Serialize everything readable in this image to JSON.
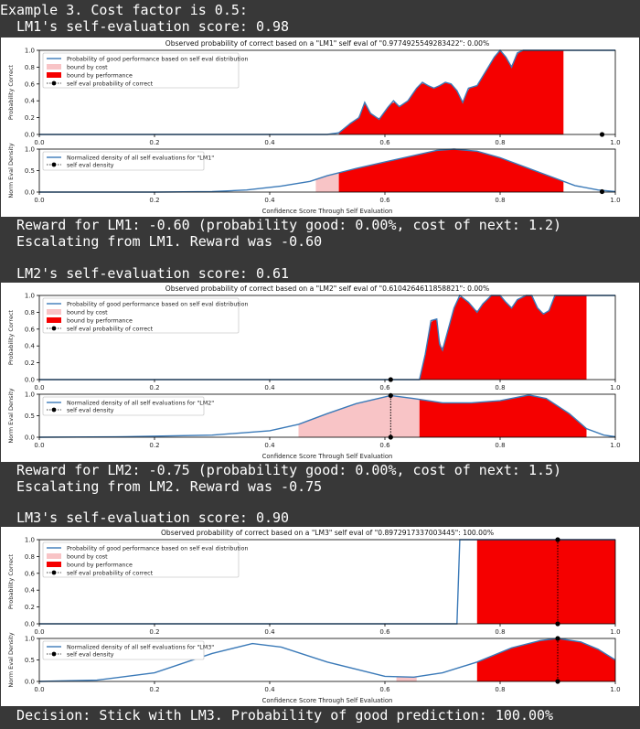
{
  "lines": {
    "l0": "Example 3. Cost factor is 0.5:",
    "l1": "  LM1's self-evaluation score: 0.98",
    "l2": "  Reward for LM1: -0.60 (probability good: 0.00%, cost of next: 1.2)",
    "l3": "  Escalating from LM1. Reward was -0.60",
    "l4": "  LM2's self-evaluation score: 0.61",
    "l5": "  Reward for LM2: -0.75 (probability good: 0.00%, cost of next: 1.5)",
    "l6": "  Escalating from LM2. Reward was -0.75",
    "l7": "  LM3's self-evaluation score: 0.90",
    "l8": "  Decision: Stick with LM3. Probability of good prediction: 100.00%"
  },
  "colors": {
    "line": "#3b7ab8",
    "cost": "#f8c4c6",
    "perf": "#f50000",
    "point": "#000000"
  },
  "chart_data": [
    {
      "type": "area",
      "model": "LM1",
      "self_eval": 0.98,
      "top": {
        "title": "Observed probability of correct based on a \"LM1\" self eval of \"0.9774925549283422\": 0.00%",
        "ylabel": "Probability Correct",
        "legend": [
          "Probability of good performance based on self eval distribution",
          "bound by cost",
          "bound by performance",
          "self eval probability of correct"
        ],
        "curve": [
          [
            0,
            0
          ],
          [
            0.5,
            0
          ],
          [
            0.52,
            0.02
          ],
          [
            0.54,
            0.13
          ],
          [
            0.555,
            0.2
          ],
          [
            0.565,
            0.38
          ],
          [
            0.575,
            0.25
          ],
          [
            0.59,
            0.18
          ],
          [
            0.605,
            0.32
          ],
          [
            0.615,
            0.4
          ],
          [
            0.625,
            0.33
          ],
          [
            0.64,
            0.4
          ],
          [
            0.655,
            0.55
          ],
          [
            0.665,
            0.62
          ],
          [
            0.675,
            0.58
          ],
          [
            0.685,
            0.55
          ],
          [
            0.695,
            0.58
          ],
          [
            0.705,
            0.62
          ],
          [
            0.715,
            0.6
          ],
          [
            0.725,
            0.52
          ],
          [
            0.735,
            0.38
          ],
          [
            0.745,
            0.55
          ],
          [
            0.76,
            0.58
          ],
          [
            0.775,
            0.75
          ],
          [
            0.79,
            0.92
          ],
          [
            0.8,
            1.0
          ],
          [
            0.81,
            0.92
          ],
          [
            0.82,
            0.8
          ],
          [
            0.83,
            0.97
          ],
          [
            0.84,
            1.0
          ],
          [
            1.0,
            1.0
          ]
        ],
        "perf_range": [
          0.52,
          0.91
        ],
        "cost_range": null,
        "point": [
          0.977,
          0.0
        ],
        "ylim": [
          0,
          1
        ],
        "yticks": [
          0,
          0.2,
          0.4,
          0.6,
          0.8,
          1.0
        ]
      },
      "bottom": {
        "legend": [
          "Normalized density of all self evaluations for \"LM1\"",
          "self eval density"
        ],
        "ylabel": "Norm Eval Density",
        "curve": [
          [
            0,
            0
          ],
          [
            0.2,
            0
          ],
          [
            0.3,
            0.01
          ],
          [
            0.36,
            0.05
          ],
          [
            0.42,
            0.14
          ],
          [
            0.47,
            0.25
          ],
          [
            0.5,
            0.38
          ],
          [
            0.55,
            0.55
          ],
          [
            0.6,
            0.7
          ],
          [
            0.65,
            0.85
          ],
          [
            0.69,
            0.97
          ],
          [
            0.72,
            1.0
          ],
          [
            0.76,
            0.95
          ],
          [
            0.8,
            0.8
          ],
          [
            0.85,
            0.55
          ],
          [
            0.9,
            0.3
          ],
          [
            0.93,
            0.15
          ],
          [
            0.97,
            0.05
          ],
          [
            1.0,
            0.01
          ]
        ],
        "perf_range": [
          0.52,
          0.91
        ],
        "cost_range": [
          0.48,
          0.52
        ],
        "point": [
          0.977,
          0.01
        ],
        "ylim": [
          0,
          1
        ],
        "yticks": [
          0,
          0.5,
          1.0
        ]
      },
      "xlabel": "Confidence Score Through Self Evaluation",
      "xticks": [
        0,
        0.2,
        0.4,
        0.6,
        0.8,
        1.0
      ]
    },
    {
      "type": "area",
      "model": "LM2",
      "self_eval": 0.61,
      "top": {
        "title": "Observed probability of correct based on a \"LM2\" self eval of \"0.6104264611858821\": 0.00%",
        "ylabel": "Probability Correct",
        "legend": [
          "Probability of good performance based on self eval distribution",
          "bound by cost",
          "bound by performance",
          "self eval probability of correct"
        ],
        "curve": [
          [
            0,
            0
          ],
          [
            0.6,
            0
          ],
          [
            0.66,
            0.0
          ],
          [
            0.67,
            0.3
          ],
          [
            0.68,
            0.7
          ],
          [
            0.69,
            0.72
          ],
          [
            0.695,
            0.42
          ],
          [
            0.7,
            0.35
          ],
          [
            0.71,
            0.6
          ],
          [
            0.72,
            0.85
          ],
          [
            0.73,
            1.0
          ],
          [
            0.745,
            0.92
          ],
          [
            0.76,
            0.8
          ],
          [
            0.77,
            0.9
          ],
          [
            0.785,
            1.0
          ],
          [
            0.8,
            1.0
          ],
          [
            0.81,
            0.92
          ],
          [
            0.82,
            0.85
          ],
          [
            0.83,
            0.95
          ],
          [
            0.845,
            1.0
          ],
          [
            0.855,
            1.0
          ],
          [
            0.865,
            0.85
          ],
          [
            0.875,
            0.78
          ],
          [
            0.885,
            0.82
          ],
          [
            0.895,
            1.0
          ],
          [
            1.0,
            1.0
          ]
        ],
        "perf_range": [
          0.66,
          0.95
        ],
        "cost_range": null,
        "point": [
          0.61,
          0.0
        ],
        "ylim": [
          0,
          1
        ],
        "yticks": [
          0,
          0.2,
          0.4,
          0.6,
          0.8,
          1.0
        ]
      },
      "bottom": {
        "legend": [
          "Normalized density of all self evaluations for \"LM2\"",
          "self eval density"
        ],
        "ylabel": "Norm Eval Density",
        "curve": [
          [
            0,
            0
          ],
          [
            0.15,
            0.01
          ],
          [
            0.3,
            0.05
          ],
          [
            0.4,
            0.15
          ],
          [
            0.45,
            0.3
          ],
          [
            0.5,
            0.55
          ],
          [
            0.55,
            0.78
          ],
          [
            0.61,
            0.97
          ],
          [
            0.65,
            0.9
          ],
          [
            0.7,
            0.8
          ],
          [
            0.75,
            0.8
          ],
          [
            0.8,
            0.85
          ],
          [
            0.85,
            0.98
          ],
          [
            0.88,
            0.9
          ],
          [
            0.92,
            0.55
          ],
          [
            0.95,
            0.2
          ],
          [
            0.98,
            0.05
          ],
          [
            1.0,
            0.01
          ]
        ],
        "perf_range": [
          0.66,
          0.95
        ],
        "cost_range": [
          0.45,
          0.66
        ],
        "point": [
          0.61,
          0.97
        ],
        "ylim": [
          0,
          1
        ],
        "yticks": [
          0,
          0.5,
          1.0
        ]
      },
      "xlabel": "Confidence Score Through Self Evaluation",
      "xticks": [
        0,
        0.2,
        0.4,
        0.6,
        0.8,
        1.0
      ]
    },
    {
      "type": "area",
      "model": "LM3",
      "self_eval": 0.9,
      "top": {
        "title": "Observed probability of correct based on a \"LM3\" self eval of \"0.8972917337003445\": 100.00%",
        "ylabel": "Probability Correct",
        "legend": [
          "Probability of good performance based on self eval distribution",
          "bound by cost",
          "bound by performance",
          "self eval probability of correct"
        ],
        "curve": [
          [
            0,
            0
          ],
          [
            0.7,
            0
          ],
          [
            0.725,
            0.0
          ],
          [
            0.73,
            1.0
          ],
          [
            1.0,
            1.0
          ]
        ],
        "perf_range": [
          0.76,
          1.0
        ],
        "cost_range": null,
        "point": [
          0.9,
          1.0
        ],
        "ylim": [
          0,
          1
        ],
        "yticks": [
          0,
          0.2,
          0.4,
          0.6,
          0.8,
          1.0
        ]
      },
      "bottom": {
        "legend": [
          "Normalized density of all self evaluations for \"LM3\"",
          "self eval density"
        ],
        "ylabel": "Norm Eval Density",
        "curve": [
          [
            0,
            0
          ],
          [
            0.1,
            0.03
          ],
          [
            0.2,
            0.2
          ],
          [
            0.3,
            0.65
          ],
          [
            0.37,
            0.88
          ],
          [
            0.42,
            0.8
          ],
          [
            0.5,
            0.45
          ],
          [
            0.6,
            0.12
          ],
          [
            0.65,
            0.1
          ],
          [
            0.7,
            0.2
          ],
          [
            0.76,
            0.45
          ],
          [
            0.82,
            0.78
          ],
          [
            0.87,
            0.95
          ],
          [
            0.9,
            1.0
          ],
          [
            0.94,
            0.92
          ],
          [
            0.97,
            0.75
          ],
          [
            1.0,
            0.5
          ]
        ],
        "perf_range": [
          0.76,
          1.0
        ],
        "cost_range": [
          0.62,
          0.655
        ],
        "point": [
          0.9,
          1.0
        ],
        "ylim": [
          0,
          1
        ],
        "yticks": [
          0,
          0.5,
          1.0
        ]
      },
      "xlabel": "Confidence Score Through Self Evaluation",
      "xticks": [
        0,
        0.2,
        0.4,
        0.6,
        0.8,
        1.0
      ]
    }
  ]
}
